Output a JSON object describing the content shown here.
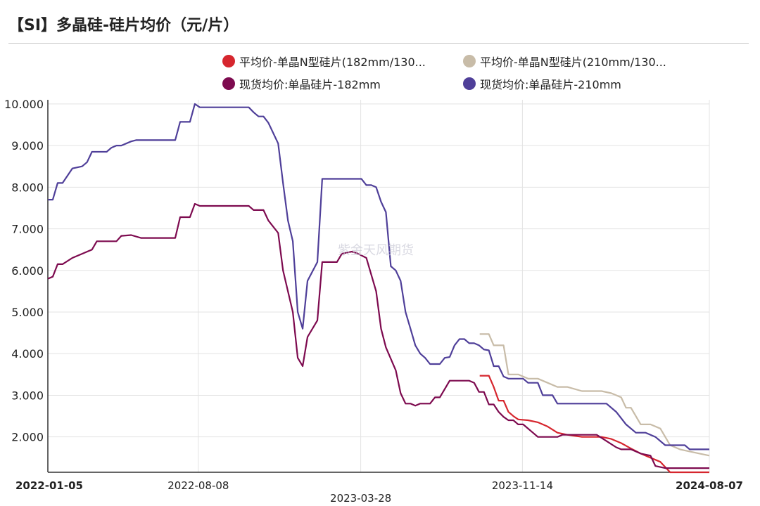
{
  "title": "【SI】多晶硅-硅片均价（元/片）",
  "watermark": "紫金天风期货",
  "legend": [
    {
      "label": "平均价-单晶N型硅片(182mm/130...",
      "color": "#d6262e"
    },
    {
      "label": "平均价-单晶N型硅片(210mm/130...",
      "color": "#c8bca8"
    },
    {
      "label": "现货均价:单晶硅片-182mm",
      "color": "#7d0a4f"
    },
    {
      "label": "现货均价:单晶硅片-210mm",
      "color": "#4f3f99"
    }
  ],
  "chart_data": {
    "type": "line",
    "title": "【SI】多晶硅-硅片均价（元/片）",
    "xlabel": "",
    "ylabel": "",
    "x_range": [
      "2022-01-05",
      "2024-08-07"
    ],
    "ylim": [
      1.15,
      10.1
    ],
    "y_ticks": [
      "2.000",
      "3.000",
      "4.000",
      "5.000",
      "6.000",
      "7.000",
      "8.000",
      "9.000",
      "10.000"
    ],
    "x_ticks": [
      {
        "date": "2022-01-05",
        "label": "2022-01-05",
        "bold": true,
        "row": 1
      },
      {
        "date": "2022-08-08",
        "label": "2022-08-08",
        "bold": false,
        "row": 1
      },
      {
        "date": "2023-03-28",
        "label": "2023-03-28",
        "bold": false,
        "row": 2
      },
      {
        "date": "2023-11-14",
        "label": "2023-11-14",
        "bold": false,
        "row": 1
      },
      {
        "date": "2024-08-07",
        "label": "2024-08-07",
        "bold": true,
        "row": 1
      }
    ],
    "grid": true,
    "legend_position": "top",
    "series": [
      {
        "name": "平均价-单晶N型硅片(182mm/130...",
        "color": "#d6262e",
        "points": [
          [
            "2023-09-14",
            3.47
          ],
          [
            "2023-09-27",
            3.47
          ],
          [
            "2023-10-04",
            3.2
          ],
          [
            "2023-10-11",
            2.87
          ],
          [
            "2023-10-18",
            2.87
          ],
          [
            "2023-10-25",
            2.6
          ],
          [
            "2023-11-01",
            2.5
          ],
          [
            "2023-11-08",
            2.42
          ],
          [
            "2023-11-22",
            2.4
          ],
          [
            "2023-12-06",
            2.35
          ],
          [
            "2023-12-20",
            2.25
          ],
          [
            "2024-01-03",
            2.1
          ],
          [
            "2024-01-17",
            2.05
          ],
          [
            "2024-02-07",
            2.0
          ],
          [
            "2024-03-06",
            2.0
          ],
          [
            "2024-03-20",
            1.95
          ],
          [
            "2024-04-03",
            1.85
          ],
          [
            "2024-04-17",
            1.72
          ],
          [
            "2024-05-01",
            1.6
          ],
          [
            "2024-05-15",
            1.5
          ],
          [
            "2024-05-29",
            1.4
          ],
          [
            "2024-06-12",
            1.15
          ],
          [
            "2024-08-07",
            1.15
          ]
        ]
      },
      {
        "name": "平均价-单晶N型硅片(210mm/130...",
        "color": "#c8bca8",
        "points": [
          [
            "2023-09-14",
            4.47
          ],
          [
            "2023-09-27",
            4.47
          ],
          [
            "2023-10-04",
            4.2
          ],
          [
            "2023-10-11",
            4.2
          ],
          [
            "2023-10-18",
            4.2
          ],
          [
            "2023-10-25",
            3.5
          ],
          [
            "2023-11-08",
            3.5
          ],
          [
            "2023-11-22",
            3.4
          ],
          [
            "2023-12-06",
            3.4
          ],
          [
            "2023-12-20",
            3.3
          ],
          [
            "2024-01-03",
            3.2
          ],
          [
            "2024-01-17",
            3.2
          ],
          [
            "2024-02-07",
            3.1
          ],
          [
            "2024-03-06",
            3.1
          ],
          [
            "2024-03-20",
            3.05
          ],
          [
            "2024-04-03",
            2.95
          ],
          [
            "2024-04-10",
            2.7
          ],
          [
            "2024-04-17",
            2.7
          ],
          [
            "2024-05-01",
            2.3
          ],
          [
            "2024-05-15",
            2.3
          ],
          [
            "2024-05-29",
            2.2
          ],
          [
            "2024-06-12",
            1.8
          ],
          [
            "2024-06-26",
            1.7
          ],
          [
            "2024-07-10",
            1.65
          ],
          [
            "2024-07-24",
            1.6
          ],
          [
            "2024-08-07",
            1.55
          ]
        ]
      },
      {
        "name": "现货均价:单晶硅片-182mm",
        "color": "#7d0a4f",
        "points": [
          [
            "2022-01-05",
            5.8
          ],
          [
            "2022-01-12",
            5.85
          ],
          [
            "2022-01-19",
            6.15
          ],
          [
            "2022-01-26",
            6.15
          ],
          [
            "2022-02-09",
            6.3
          ],
          [
            "2022-02-23",
            6.4
          ],
          [
            "2022-03-09",
            6.5
          ],
          [
            "2022-03-16",
            6.7
          ],
          [
            "2022-03-23",
            6.7
          ],
          [
            "2022-04-13",
            6.7
          ],
          [
            "2022-04-20",
            6.83
          ],
          [
            "2022-05-04",
            6.85
          ],
          [
            "2022-05-18",
            6.78
          ],
          [
            "2022-06-01",
            6.78
          ],
          [
            "2022-06-29",
            6.78
          ],
          [
            "2022-07-06",
            6.78
          ],
          [
            "2022-07-13",
            7.28
          ],
          [
            "2022-07-27",
            7.28
          ],
          [
            "2022-08-03",
            7.6
          ],
          [
            "2022-08-10",
            7.55
          ],
          [
            "2022-09-07",
            7.55
          ],
          [
            "2022-10-05",
            7.55
          ],
          [
            "2022-10-19",
            7.55
          ],
          [
            "2022-10-26",
            7.45
          ],
          [
            "2022-11-09",
            7.45
          ],
          [
            "2022-11-16",
            7.2
          ],
          [
            "2022-11-30",
            6.9
          ],
          [
            "2022-12-07",
            6.0
          ],
          [
            "2022-12-21",
            5.0
          ],
          [
            "2022-12-28",
            3.9
          ],
          [
            "2023-01-04",
            3.7
          ],
          [
            "2023-01-11",
            4.4
          ],
          [
            "2023-01-25",
            4.8
          ],
          [
            "2023-02-01",
            6.2
          ],
          [
            "2023-02-22",
            6.2
          ],
          [
            "2023-03-01",
            6.4
          ],
          [
            "2023-03-15",
            6.45
          ],
          [
            "2023-03-22",
            6.42
          ],
          [
            "2023-04-05",
            6.3
          ],
          [
            "2023-04-19",
            5.5
          ],
          [
            "2023-04-26",
            4.6
          ],
          [
            "2023-05-03",
            4.15
          ],
          [
            "2023-05-17",
            3.6
          ],
          [
            "2023-05-24",
            3.05
          ],
          [
            "2023-05-31",
            2.8
          ],
          [
            "2023-06-07",
            2.8
          ],
          [
            "2023-06-14",
            2.75
          ],
          [
            "2023-06-21",
            2.8
          ],
          [
            "2023-07-05",
            2.8
          ],
          [
            "2023-07-12",
            2.95
          ],
          [
            "2023-07-19",
            2.95
          ],
          [
            "2023-08-02",
            3.35
          ],
          [
            "2023-08-30",
            3.35
          ],
          [
            "2023-09-06",
            3.3
          ],
          [
            "2023-09-13",
            3.08
          ],
          [
            "2023-09-20",
            3.08
          ],
          [
            "2023-09-27",
            2.78
          ],
          [
            "2023-10-04",
            2.78
          ],
          [
            "2023-10-11",
            2.6
          ],
          [
            "2023-10-18",
            2.48
          ],
          [
            "2023-10-25",
            2.4
          ],
          [
            "2023-11-01",
            2.4
          ],
          [
            "2023-11-08",
            2.3
          ],
          [
            "2023-11-15",
            2.3
          ],
          [
            "2023-11-29",
            2.1
          ],
          [
            "2023-12-06",
            2.0
          ],
          [
            "2024-01-03",
            2.0
          ],
          [
            "2024-01-10",
            2.05
          ],
          [
            "2024-02-14",
            2.05
          ],
          [
            "2024-02-28",
            2.05
          ],
          [
            "2024-03-13",
            1.9
          ],
          [
            "2024-03-27",
            1.75
          ],
          [
            "2024-04-03",
            1.7
          ],
          [
            "2024-04-17",
            1.7
          ],
          [
            "2024-05-01",
            1.6
          ],
          [
            "2024-05-15",
            1.55
          ],
          [
            "2024-05-22",
            1.3
          ],
          [
            "2024-06-05",
            1.25
          ],
          [
            "2024-08-07",
            1.25
          ]
        ]
      },
      {
        "name": "现货均价:单晶硅片-210mm",
        "color": "#4f3f99",
        "points": [
          [
            "2022-01-05",
            7.7
          ],
          [
            "2022-01-12",
            7.7
          ],
          [
            "2022-01-19",
            8.1
          ],
          [
            "2022-01-26",
            8.1
          ],
          [
            "2022-02-09",
            8.45
          ],
          [
            "2022-02-23",
            8.5
          ],
          [
            "2022-03-02",
            8.6
          ],
          [
            "2022-03-09",
            8.85
          ],
          [
            "2022-03-16",
            8.85
          ],
          [
            "2022-03-30",
            8.85
          ],
          [
            "2022-04-06",
            8.95
          ],
          [
            "2022-04-13",
            9.0
          ],
          [
            "2022-04-20",
            9.0
          ],
          [
            "2022-05-04",
            9.1
          ],
          [
            "2022-05-11",
            9.13
          ],
          [
            "2022-05-25",
            9.13
          ],
          [
            "2022-06-29",
            9.13
          ],
          [
            "2022-07-06",
            9.13
          ],
          [
            "2022-07-13",
            9.57
          ],
          [
            "2022-07-27",
            9.57
          ],
          [
            "2022-08-03",
            10.0
          ],
          [
            "2022-08-10",
            9.92
          ],
          [
            "2022-09-07",
            9.92
          ],
          [
            "2022-10-05",
            9.92
          ],
          [
            "2022-10-19",
            9.92
          ],
          [
            "2022-10-26",
            9.8
          ],
          [
            "2022-11-02",
            9.7
          ],
          [
            "2022-11-09",
            9.7
          ],
          [
            "2022-11-16",
            9.55
          ],
          [
            "2022-11-30",
            9.05
          ],
          [
            "2022-12-07",
            8.1
          ],
          [
            "2022-12-14",
            7.2
          ],
          [
            "2022-12-21",
            6.7
          ],
          [
            "2022-12-28",
            5.0
          ],
          [
            "2023-01-04",
            4.6
          ],
          [
            "2023-01-11",
            5.75
          ],
          [
            "2023-01-25",
            6.2
          ],
          [
            "2023-02-01",
            8.2
          ],
          [
            "2023-02-22",
            8.2
          ],
          [
            "2023-03-15",
            8.2
          ],
          [
            "2023-03-29",
            8.2
          ],
          [
            "2023-04-05",
            8.05
          ],
          [
            "2023-04-12",
            8.05
          ],
          [
            "2023-04-19",
            8.0
          ],
          [
            "2023-04-26",
            7.65
          ],
          [
            "2023-05-03",
            7.4
          ],
          [
            "2023-05-10",
            6.1
          ],
          [
            "2023-05-17",
            6.0
          ],
          [
            "2023-05-24",
            5.75
          ],
          [
            "2023-05-31",
            5.0
          ],
          [
            "2023-06-07",
            4.6
          ],
          [
            "2023-06-14",
            4.2
          ],
          [
            "2023-06-21",
            4.0
          ],
          [
            "2023-06-28",
            3.9
          ],
          [
            "2023-07-05",
            3.75
          ],
          [
            "2023-07-19",
            3.75
          ],
          [
            "2023-07-26",
            3.9
          ],
          [
            "2023-08-02",
            3.92
          ],
          [
            "2023-08-09",
            4.2
          ],
          [
            "2023-08-16",
            4.35
          ],
          [
            "2023-08-23",
            4.35
          ],
          [
            "2023-08-30",
            4.25
          ],
          [
            "2023-09-06",
            4.25
          ],
          [
            "2023-09-13",
            4.2
          ],
          [
            "2023-09-20",
            4.1
          ],
          [
            "2023-09-27",
            4.08
          ],
          [
            "2023-10-04",
            3.7
          ],
          [
            "2023-10-11",
            3.7
          ],
          [
            "2023-10-18",
            3.45
          ],
          [
            "2023-10-25",
            3.4
          ],
          [
            "2023-11-15",
            3.4
          ],
          [
            "2023-11-22",
            3.3
          ],
          [
            "2023-12-06",
            3.3
          ],
          [
            "2023-12-13",
            3.0
          ],
          [
            "2023-12-27",
            3.0
          ],
          [
            "2024-01-03",
            2.8
          ],
          [
            "2024-01-17",
            2.8
          ],
          [
            "2024-02-28",
            2.8
          ],
          [
            "2024-03-13",
            2.8
          ],
          [
            "2024-03-27",
            2.6
          ],
          [
            "2024-04-10",
            2.3
          ],
          [
            "2024-04-24",
            2.1
          ],
          [
            "2024-05-08",
            2.1
          ],
          [
            "2024-05-22",
            2.0
          ],
          [
            "2024-06-05",
            1.8
          ],
          [
            "2024-06-19",
            1.8
          ],
          [
            "2024-07-03",
            1.8
          ],
          [
            "2024-07-10",
            1.7
          ],
          [
            "2024-08-07",
            1.7
          ]
        ]
      }
    ]
  }
}
